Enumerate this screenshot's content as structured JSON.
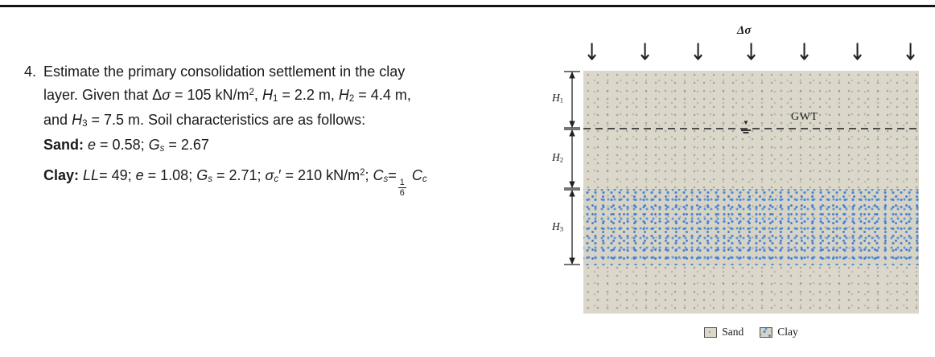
{
  "colors": {
    "ink": "#1a1a1a",
    "sand-base": "#dbd8cb",
    "clay-speck": "#4a86d8"
  },
  "problem": {
    "number": "4.",
    "lines": [
      [
        {
          "t": "Estimate the primary consolidation settlement in the clay"
        }
      ],
      [
        {
          "t": "layer. Given that Δ"
        },
        {
          "t": "σ",
          "i": 1
        },
        {
          "t": " = 105 kN/m"
        },
        {
          "t": "2",
          "sup": 1
        },
        {
          "t": ", "
        },
        {
          "t": "H",
          "i": 1
        },
        {
          "t": "1",
          "sub": 1
        },
        {
          "t": " = 2.2 m, "
        },
        {
          "t": "H",
          "i": 1
        },
        {
          "t": "2",
          "sub": 1
        },
        {
          "t": " = 4.4 m,"
        }
      ],
      [
        {
          "t": "and "
        },
        {
          "t": "H",
          "i": 1
        },
        {
          "t": "3",
          "sub": 1
        },
        {
          "t": " = 7.5 m. Soil characteristics are as follows:"
        }
      ]
    ],
    "sand_line": [
      {
        "t": "Sand: ",
        "b": 1
      },
      {
        "t": "e",
        "i": 1
      },
      {
        "t": " = 0.58; "
      },
      {
        "t": "G",
        "i": 1
      },
      {
        "t": "s",
        "sub": 1,
        "i": 1
      },
      {
        "t": " = 2.67"
      }
    ],
    "clay_line": [
      {
        "t": "Clay: ",
        "b": 1
      },
      {
        "t": "LL",
        "i": 1
      },
      {
        "t": "= 49; "
      },
      {
        "t": "e",
        "i": 1
      },
      {
        "t": " = 1.08; "
      },
      {
        "t": "G",
        "i": 1
      },
      {
        "t": "s",
        "sub": 1,
        "i": 1
      },
      {
        "t": " = 2.71; "
      },
      {
        "t": "σ",
        "i": 1
      },
      {
        "t": "c",
        "sub": 1,
        "i": 1
      },
      {
        "t": "′ = 210 kN/m"
      },
      {
        "t": "2",
        "sup": 1
      },
      {
        "t": "; "
      },
      {
        "t": "C",
        "i": 1
      },
      {
        "t": "s",
        "sub": 1,
        "i": 1
      },
      {
        "t": "="
      },
      {
        "frac": [
          "1",
          "6"
        ]
      },
      {
        "t": " "
      },
      {
        "t": "C",
        "i": 1
      },
      {
        "t": "c",
        "sub": 1,
        "i": 1
      }
    ]
  },
  "diagram": {
    "surcharge_label": [
      {
        "t": "Δ",
        "i": 1
      },
      {
        "t": "σ",
        "i": 1
      }
    ],
    "gwt_label": "GWT",
    "h1": [
      {
        "t": "H",
        "i": 1
      },
      {
        "t": "1",
        "sub": 1
      }
    ],
    "h2": [
      {
        "t": "H",
        "i": 1
      },
      {
        "t": "2",
        "sub": 1
      }
    ],
    "h3": [
      {
        "t": "H",
        "i": 1
      },
      {
        "t": "3",
        "sub": 1
      }
    ],
    "legend": {
      "sand": "Sand",
      "clay": "Clay"
    }
  },
  "icons": {
    "down_arrow": "↓",
    "water_table": "▼"
  }
}
